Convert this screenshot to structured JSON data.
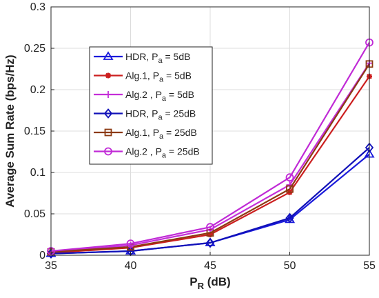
{
  "chart_data": {
    "type": "line",
    "title": "",
    "xlabel": "P",
    "xlabel_sub": "R",
    "xlabel_unit": "(dB)",
    "ylabel": "Average Sum Rate (bps/Hz)",
    "x": [
      35,
      40,
      45,
      50,
      55
    ],
    "xlim": [
      35,
      55
    ],
    "ylim": [
      0,
      0.3
    ],
    "xticks": [
      "35",
      "40",
      "45",
      "50",
      "55"
    ],
    "yticks": [
      "0",
      "0.05",
      "0.1",
      "0.15",
      "0.2",
      "0.25",
      "0.3"
    ],
    "grid": true,
    "legend_position": "upper-left-center",
    "series": [
      {
        "name": "HDR, P_a = 5dB",
        "legend": {
          "pre": "HDR, P",
          "sub": "a",
          "post": " = 5dB"
        },
        "color": "#1a1adb",
        "marker": "triangle",
        "values": [
          0.002,
          0.005,
          0.015,
          0.043,
          0.122
        ]
      },
      {
        "name": "Alg.1, P_a = 5dB",
        "legend": {
          "pre": "Alg.1, P",
          "sub": "a",
          "post": " = 5dB"
        },
        "color": "#cc1f1f",
        "marker": "asterisk",
        "values": [
          0.003,
          0.009,
          0.025,
          0.076,
          0.216
        ]
      },
      {
        "name": "Alg.2 , P_a = 5dB",
        "legend": {
          "pre": "Alg.2 , P",
          "sub": "a",
          "post": " = 5dB"
        },
        "color": "#c42ed8",
        "marker": "plus",
        "values": [
          0.004,
          0.012,
          0.031,
          0.085,
          0.232
        ]
      },
      {
        "name": "HDR, P_a = 25dB",
        "legend": {
          "pre": "HDR, P",
          "sub": "a",
          "post": " = 25dB"
        },
        "color": "#1010b8",
        "marker": "diamond",
        "values": [
          0.002,
          0.005,
          0.015,
          0.045,
          0.13
        ]
      },
      {
        "name": "Alg.1, P_a = 25dB",
        "legend": {
          "pre": "Alg.1, P",
          "sub": "a",
          "post": " = 25dB"
        },
        "color": "#8c3a12",
        "marker": "square",
        "values": [
          0.004,
          0.01,
          0.027,
          0.08,
          0.231
        ]
      },
      {
        "name": "Alg.2 , P_a = 25dB",
        "legend": {
          "pre": "Alg.2 , P",
          "sub": "a",
          "post": " = 25dB"
        },
        "color": "#c02ad6",
        "marker": "circle",
        "values": [
          0.005,
          0.014,
          0.034,
          0.094,
          0.257
        ]
      }
    ]
  }
}
